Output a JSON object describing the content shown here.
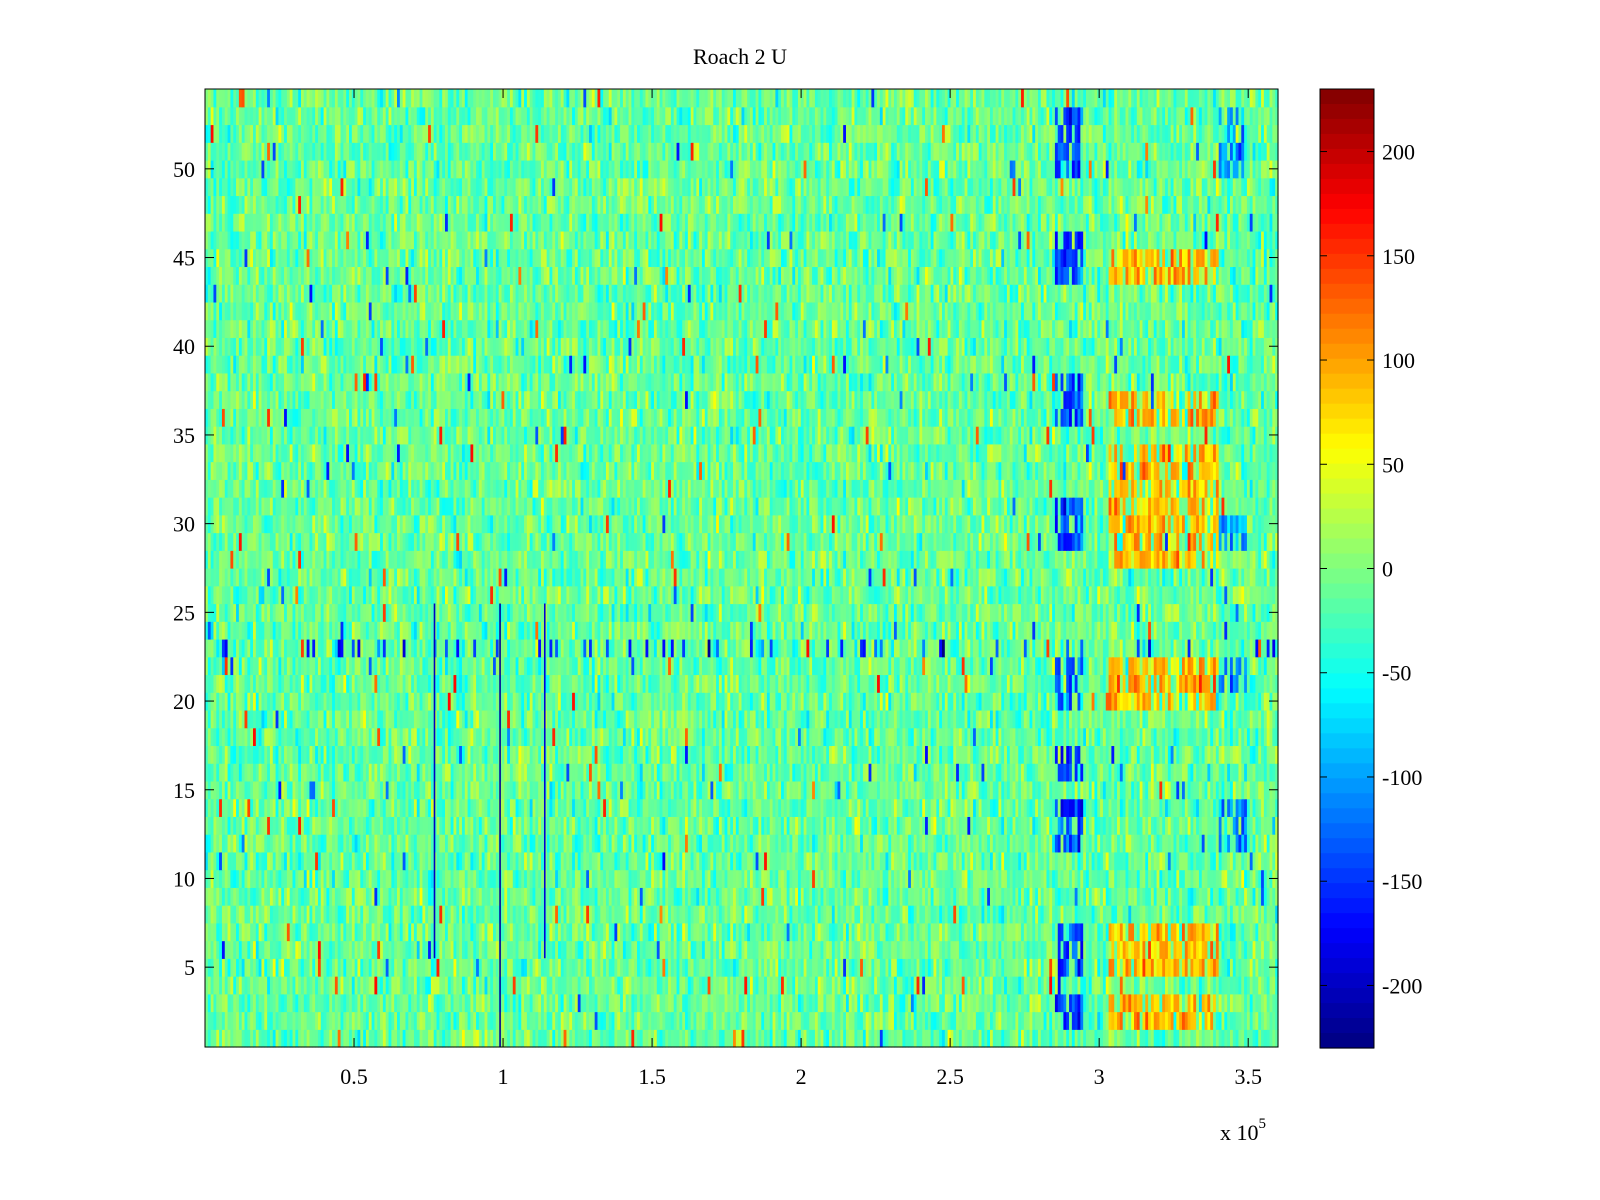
{
  "chart_data": {
    "type": "heatmap",
    "title": "Roach 2 U",
    "xlabel": "",
    "ylabel": "",
    "x_exponent_label": "x 10",
    "x_exponent_power": "5",
    "xlim": [
      0,
      3.6
    ],
    "ylim": [
      0.5,
      54.5
    ],
    "rows": 54,
    "x_ticks": [
      0.5,
      1,
      1.5,
      2,
      2.5,
      3,
      3.5
    ],
    "x_tick_labels": [
      "0.5",
      "1",
      "1.5",
      "2",
      "2.5",
      "3",
      "3.5"
    ],
    "y_ticks": [
      5,
      10,
      15,
      20,
      25,
      30,
      35,
      40,
      45,
      50
    ],
    "y_tick_labels": [
      "5",
      "10",
      "15",
      "20",
      "25",
      "30",
      "35",
      "40",
      "45",
      "50"
    ],
    "colorbar": {
      "colormap": "jet",
      "clim": [
        -230,
        230
      ],
      "ticks": [
        -200,
        -150,
        -100,
        -50,
        0,
        50,
        100,
        150,
        200
      ],
      "tick_labels": [
        "-200",
        "-150",
        "-100",
        "-50",
        "0",
        "50",
        "100",
        "150",
        "200"
      ]
    },
    "features": [
      {
        "kind": "low_band",
        "x": [
          2.85,
          2.95
        ],
        "rows": [
          [
            50,
            53
          ],
          [
            44,
            46
          ],
          [
            36,
            38
          ],
          [
            29,
            31
          ],
          [
            20,
            22
          ],
          [
            16,
            17
          ],
          [
            12,
            14
          ],
          [
            5,
            7
          ],
          [
            2,
            3
          ]
        ],
        "value": -140
      },
      {
        "kind": "low_band",
        "x": [
          3.4,
          3.5
        ],
        "rows": [
          [
            50,
            53
          ],
          [
            29,
            30
          ],
          [
            21,
            22
          ],
          [
            12,
            14
          ]
        ],
        "value": -110
      },
      {
        "kind": "high_band",
        "x": [
          3.03,
          3.4
        ],
        "rows": [
          [
            44,
            45
          ],
          [
            36,
            37
          ],
          [
            33,
            34
          ],
          [
            31,
            32
          ],
          [
            28,
            30
          ],
          [
            20,
            22
          ],
          [
            5,
            7
          ],
          [
            2,
            3
          ]
        ],
        "value": 90
      },
      {
        "kind": "dark_line",
        "x": 0.77,
        "rows": [
          6,
          25
        ],
        "value": -200
      },
      {
        "kind": "dark_line",
        "x": 0.99,
        "rows": [
          1,
          25
        ],
        "value": -220
      },
      {
        "kind": "dark_line",
        "x": 1.14,
        "rows": [
          6,
          25
        ],
        "value": -190
      },
      {
        "kind": "spiky_row",
        "row": 23,
        "value": -150
      }
    ]
  }
}
